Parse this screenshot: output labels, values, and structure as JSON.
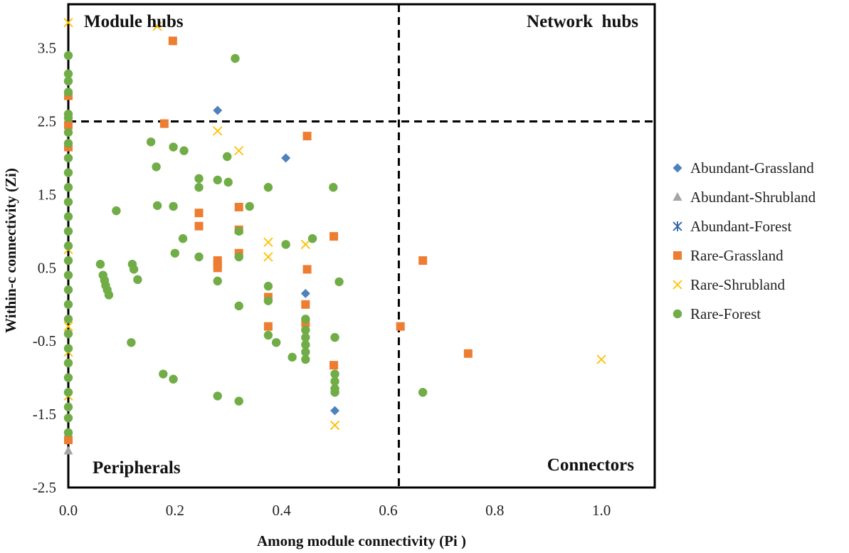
{
  "chart_data": {
    "type": "scatter",
    "title": "",
    "xlabel": "Among module connectivity (Pi )",
    "ylabel": "Within-c connectivity (Zi)",
    "xlim": [
      0,
      1.1
    ],
    "ylim": [
      -2.5,
      4.1
    ],
    "xticks": [
      0,
      0.2,
      0.4,
      0.6,
      0.8,
      1.0
    ],
    "xtick_labels": [
      "0.0",
      "0.2",
      "0.4",
      "0.6",
      "0.8",
      "1.0"
    ],
    "yticks": [
      3.5,
      2.5,
      1.5,
      0.5,
      -0.5,
      -1.5,
      -2.5
    ],
    "ytick_labels": [
      "3.5",
      "2.5",
      "1.5",
      "0.5",
      "-0.5",
      "-1.5",
      "-2.5"
    ],
    "thresholds": {
      "pi": 0.62,
      "zi": 2.5
    },
    "quadrant_labels": {
      "top_left": "Module hubs",
      "top_right": "Network  hubs",
      "bottom_left": "Peripherals",
      "bottom_right": "Connectors"
    },
    "legend_position": "right",
    "series": [
      {
        "name": "Abundant-Grassland",
        "marker": "diamond",
        "color": "#4F81BD",
        "points": [
          [
            0.28,
            2.65
          ],
          [
            0.408,
            2.0
          ],
          [
            0.445,
            0.15
          ],
          [
            0.5,
            -1.45
          ]
        ]
      },
      {
        "name": "Abundant-Shrubland",
        "marker": "triangle",
        "color": "#A5A5A5",
        "points": [
          [
            0.0,
            -2.0
          ]
        ]
      },
      {
        "name": "Abundant-Forest",
        "marker": "star",
        "color": "#2E5EA8",
        "points": []
      },
      {
        "name": "Rare-Grassland",
        "marker": "square",
        "color": "#ED7D31",
        "points": [
          [
            0.196,
            3.6
          ],
          [
            0.18,
            2.47
          ],
          [
            0.0,
            2.85
          ],
          [
            0.0,
            2.45
          ],
          [
            0.0,
            2.15
          ],
          [
            0.0,
            -1.85
          ],
          [
            0.448,
            2.3
          ],
          [
            0.245,
            1.25
          ],
          [
            0.245,
            1.07
          ],
          [
            0.28,
            0.6
          ],
          [
            0.28,
            0.55
          ],
          [
            0.28,
            0.5
          ],
          [
            0.32,
            1.33
          ],
          [
            0.32,
            1.02
          ],
          [
            0.32,
            0.7
          ],
          [
            0.375,
            0.1
          ],
          [
            0.375,
            -0.3
          ],
          [
            0.445,
            0.0
          ],
          [
            0.445,
            -0.25
          ],
          [
            0.448,
            0.48
          ],
          [
            0.498,
            0.93
          ],
          [
            0.498,
            -0.83
          ],
          [
            0.623,
            -0.3
          ],
          [
            0.665,
            0.6
          ],
          [
            0.75,
            -0.67
          ]
        ]
      },
      {
        "name": "Rare-Shrubland",
        "marker": "x",
        "color": "#FFC000",
        "points": [
          [
            0.0,
            3.85
          ],
          [
            0.167,
            3.8
          ],
          [
            0.28,
            2.37
          ],
          [
            0.32,
            2.1
          ],
          [
            0.375,
            0.85
          ],
          [
            0.375,
            0.65
          ],
          [
            0.445,
            0.82
          ],
          [
            0.5,
            -1.65
          ],
          [
            1.0,
            -0.75
          ],
          [
            0.0,
            0.75
          ],
          [
            0.0,
            -0.3
          ],
          [
            0.0,
            -0.65
          ],
          [
            0.0,
            -1.25
          ]
        ]
      },
      {
        "name": "Rare-Forest",
        "marker": "circle",
        "color": "#70AD47",
        "points": [
          [
            0.0,
            3.4
          ],
          [
            0.0,
            3.15
          ],
          [
            0.0,
            3.05
          ],
          [
            0.0,
            2.9
          ],
          [
            0.0,
            2.6
          ],
          [
            0.0,
            2.55
          ],
          [
            0.0,
            2.35
          ],
          [
            0.0,
            2.2
          ],
          [
            0.0,
            2.0
          ],
          [
            0.0,
            1.8
          ],
          [
            0.0,
            1.6
          ],
          [
            0.0,
            1.4
          ],
          [
            0.0,
            1.2
          ],
          [
            0.0,
            1.0
          ],
          [
            0.0,
            0.8
          ],
          [
            0.0,
            0.6
          ],
          [
            0.0,
            0.4
          ],
          [
            0.0,
            0.2
          ],
          [
            0.0,
            0.0
          ],
          [
            0.0,
            -0.2
          ],
          [
            0.0,
            -0.4
          ],
          [
            0.0,
            -0.6
          ],
          [
            0.0,
            -0.8
          ],
          [
            0.0,
            -1.0
          ],
          [
            0.0,
            -1.2
          ],
          [
            0.0,
            -1.4
          ],
          [
            0.0,
            -1.55
          ],
          [
            0.0,
            -1.75
          ],
          [
            0.313,
            3.36
          ],
          [
            0.155,
            2.22
          ],
          [
            0.197,
            2.15
          ],
          [
            0.217,
            2.1
          ],
          [
            0.165,
            1.88
          ],
          [
            0.245,
            1.72
          ],
          [
            0.245,
            1.6
          ],
          [
            0.28,
            1.7
          ],
          [
            0.298,
            2.02
          ],
          [
            0.3,
            1.67
          ],
          [
            0.09,
            1.28
          ],
          [
            0.167,
            1.35
          ],
          [
            0.197,
            1.34
          ],
          [
            0.34,
            1.34
          ],
          [
            0.375,
            1.6
          ],
          [
            0.497,
            1.6
          ],
          [
            0.32,
            1.0
          ],
          [
            0.215,
            0.9
          ],
          [
            0.245,
            0.65
          ],
          [
            0.2,
            0.7
          ],
          [
            0.32,
            0.65
          ],
          [
            0.408,
            0.82
          ],
          [
            0.458,
            0.9
          ],
          [
            0.06,
            0.55
          ],
          [
            0.065,
            0.4
          ],
          [
            0.068,
            0.33
          ],
          [
            0.07,
            0.26
          ],
          [
            0.073,
            0.2
          ],
          [
            0.076,
            0.13
          ],
          [
            0.12,
            0.55
          ],
          [
            0.123,
            0.48
          ],
          [
            0.13,
            0.34
          ],
          [
            0.28,
            0.32
          ],
          [
            0.375,
            0.25
          ],
          [
            0.375,
            0.05
          ],
          [
            0.508,
            0.31
          ],
          [
            0.32,
            -0.02
          ],
          [
            0.445,
            -0.2
          ],
          [
            0.445,
            -0.35
          ],
          [
            0.445,
            -0.45
          ],
          [
            0.445,
            -0.55
          ],
          [
            0.445,
            -0.65
          ],
          [
            0.445,
            -0.75
          ],
          [
            0.5,
            -0.45
          ],
          [
            0.375,
            -0.42
          ],
          [
            0.39,
            -0.52
          ],
          [
            0.42,
            -0.72
          ],
          [
            0.5,
            -0.95
          ],
          [
            0.5,
            -1.05
          ],
          [
            0.5,
            -1.15
          ],
          [
            0.5,
            -1.2
          ],
          [
            0.118,
            -0.52
          ],
          [
            0.178,
            -0.95
          ],
          [
            0.197,
            -1.02
          ],
          [
            0.28,
            -1.25
          ],
          [
            0.32,
            -1.32
          ],
          [
            0.665,
            -1.2
          ]
        ]
      }
    ]
  }
}
